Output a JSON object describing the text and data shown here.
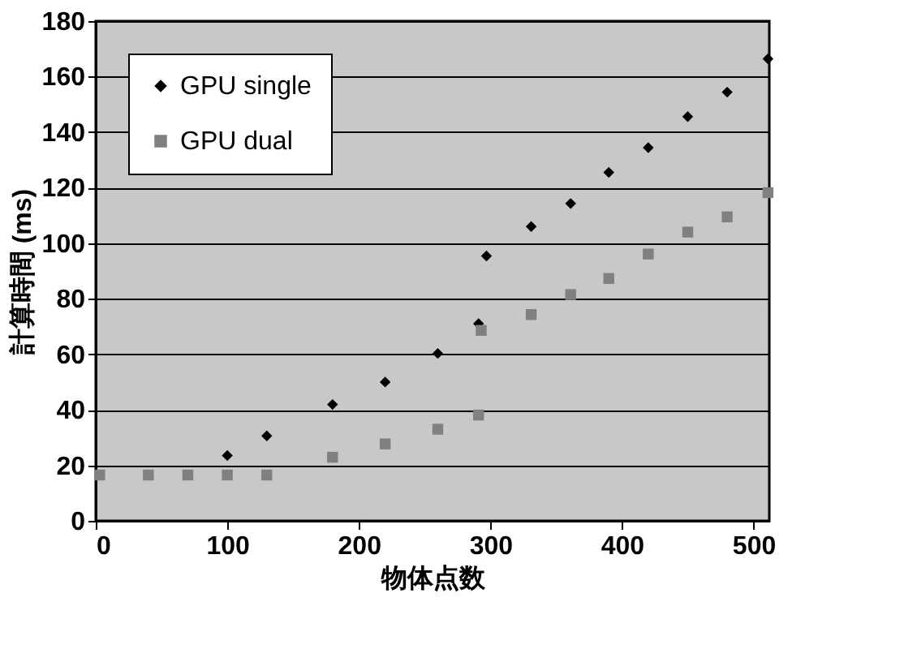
{
  "chart_data": {
    "type": "scatter",
    "xlabel": "物体点数",
    "ylabel": "計算時間 (ms)",
    "xlim": [
      0,
      512
    ],
    "xticks": [
      0,
      100,
      200,
      300,
      400,
      500
    ],
    "ylim": [
      0,
      180
    ],
    "yticks": [
      0,
      20,
      40,
      60,
      80,
      100,
      120,
      140,
      160,
      180
    ],
    "grid": "y",
    "legend": "top left",
    "series": [
      {
        "name": "GPU single",
        "color": "#000000",
        "marker": "diamond",
        "x": [
          100,
          130,
          180,
          220,
          260,
          291,
          297,
          331,
          361,
          390,
          420,
          450,
          480,
          511
        ],
        "values": [
          23.5,
          30.6,
          41.9,
          50,
          60.3,
          71,
          95.4,
          106,
          114.3,
          125.5,
          134.4,
          145.6,
          154.4,
          166.4
        ]
      },
      {
        "name": "GPU dual",
        "color": "#808080",
        "marker": "square",
        "x": [
          3,
          40,
          70,
          100,
          130,
          180,
          220,
          260,
          291,
          293,
          331,
          361,
          390,
          420,
          450,
          480,
          511
        ],
        "values": [
          16.5,
          16.5,
          16.5,
          16.5,
          16.5,
          22.9,
          27.7,
          33,
          38.1,
          68.6,
          74.3,
          81.5,
          87.3,
          96.1,
          104,
          109.5,
          118.2
        ]
      }
    ]
  }
}
